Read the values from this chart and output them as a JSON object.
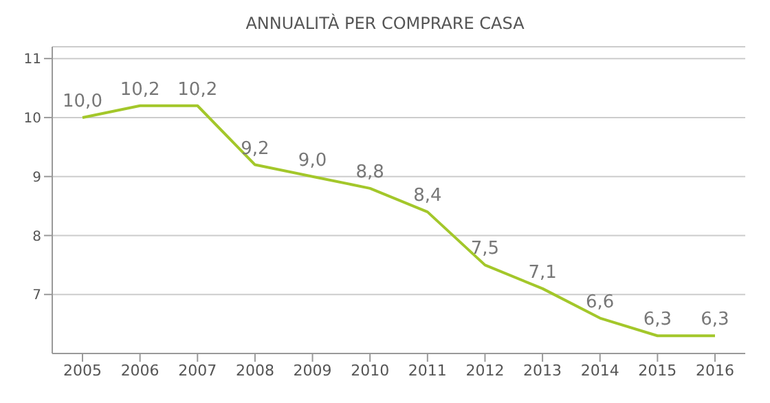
{
  "chart_data": {
    "type": "line",
    "title": "ANNUALITÀ PER COMPRARE CASA",
    "categories": [
      "2005",
      "2006",
      "2007",
      "2008",
      "2009",
      "2010",
      "2011",
      "2012",
      "2013",
      "2014",
      "2015",
      "2016"
    ],
    "series": [
      {
        "color": "#a3c72a",
        "values": [
          10.0,
          10.2,
          10.2,
          9.2,
          9.0,
          8.8,
          8.4,
          7.5,
          7.1,
          6.6,
          6.3,
          6.3
        ],
        "value_labels": [
          "10,0",
          "10,2",
          "10,2",
          "9,2",
          "9,0",
          "8,8",
          "8,4",
          "7,5",
          "7,1",
          "6,6",
          "6,3",
          "6,3"
        ]
      }
    ],
    "ylim": [
      6,
      11.2
    ],
    "yticks": [
      7,
      8,
      9,
      10,
      11
    ],
    "grid": "y",
    "legend": false,
    "marker": "none",
    "line_style": "solid"
  }
}
